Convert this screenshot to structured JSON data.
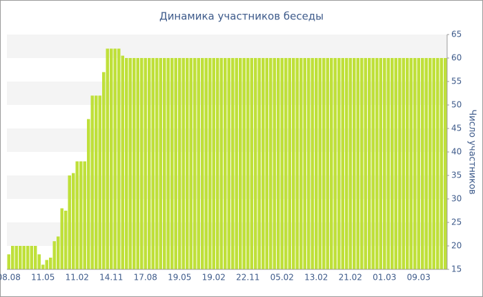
{
  "chart_data": {
    "type": "bar",
    "title": "Динамика участников беседы",
    "y_label": "Число участников",
    "categories": [
      "08.08",
      null,
      null,
      null,
      null,
      null,
      null,
      null,
      null,
      "11.05",
      null,
      null,
      null,
      null,
      null,
      null,
      null,
      null,
      "11.02",
      null,
      null,
      null,
      null,
      null,
      null,
      null,
      null,
      "14.11",
      null,
      null,
      null,
      null,
      null,
      null,
      null,
      null,
      "17.08",
      null,
      null,
      null,
      null,
      null,
      null,
      null,
      null,
      "19.05",
      null,
      null,
      null,
      null,
      null,
      null,
      null,
      null,
      "19.02",
      null,
      null,
      null,
      null,
      null,
      null,
      null,
      null,
      "22.11",
      null,
      null,
      null,
      null,
      null,
      null,
      null,
      null,
      "05.02",
      null,
      null,
      null,
      null,
      null,
      null,
      null,
      null,
      "13.02",
      null,
      null,
      null,
      null,
      null,
      null,
      null,
      null,
      "21.02",
      null,
      null,
      null,
      null,
      null,
      null,
      null,
      null,
      "01.03",
      null,
      null,
      null,
      null,
      null,
      null,
      null,
      null,
      "09.03",
      null,
      null,
      null,
      null,
      null,
      null,
      null
    ],
    "values": [
      18.2,
      20,
      20,
      20,
      20,
      20,
      20,
      20,
      18.2,
      16,
      17,
      17.5,
      21,
      22,
      28,
      27.5,
      35,
      35.5,
      38,
      38,
      38,
      47,
      52,
      52,
      52,
      57,
      62,
      62,
      62,
      62,
      60.5,
      60,
      60,
      60,
      60,
      60,
      60,
      60,
      60,
      60,
      60,
      60,
      60,
      60,
      60,
      60,
      60,
      60,
      60,
      60,
      60,
      60,
      60,
      60,
      60,
      60,
      60,
      60,
      60,
      60,
      60,
      60,
      60,
      60,
      60,
      60,
      60,
      60,
      60,
      60,
      60,
      60,
      60,
      60,
      60,
      60,
      60,
      60,
      60,
      60,
      60,
      60,
      60,
      60,
      60,
      60,
      60,
      60,
      60,
      60,
      60,
      60,
      60,
      60,
      60,
      60,
      60,
      60,
      60,
      60,
      60,
      60,
      60,
      60,
      60,
      60,
      60,
      60,
      60,
      60,
      60,
      60,
      60,
      60,
      60,
      60
    ],
    "color": "#bfe03a",
    "ylim": [
      15,
      65
    ],
    "yticks": [
      15,
      20,
      25,
      30,
      35,
      40,
      45,
      50,
      55,
      60,
      65
    ],
    "grid": "bands",
    "y_axis_side": "right"
  }
}
